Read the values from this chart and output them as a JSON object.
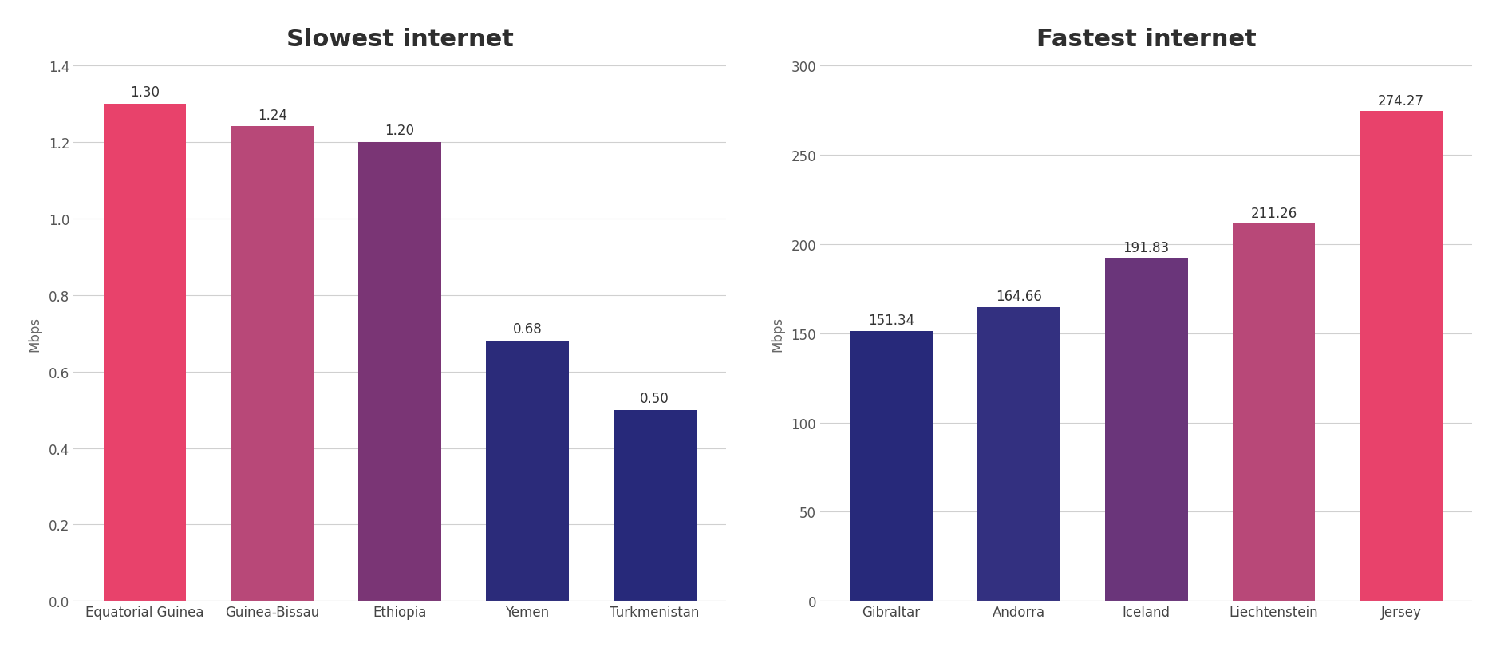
{
  "slow_categories": [
    "Equatorial Guinea",
    "Guinea-Bissau",
    "Ethiopia",
    "Yemen",
    "Turkmenistan"
  ],
  "slow_values": [
    1.3,
    1.24,
    1.2,
    0.68,
    0.5
  ],
  "slow_colors": [
    "#e8426b",
    "#b84878",
    "#7a3575",
    "#2b2b7a",
    "#27297a"
  ],
  "fast_categories": [
    "Gibraltar",
    "Andorra",
    "Iceland",
    "Liechtenstein",
    "Jersey"
  ],
  "fast_values": [
    151.34,
    164.66,
    191.83,
    211.26,
    274.27
  ],
  "fast_colors": [
    "#27297a",
    "#333080",
    "#6a357a",
    "#b84878",
    "#e8426b"
  ],
  "slow_title": "Slowest internet",
  "fast_title": "Fastest internet",
  "ylabel": "Mbps",
  "slow_ylim": [
    0,
    1.4
  ],
  "slow_yticks": [
    0,
    0.2,
    0.4,
    0.6,
    0.8,
    1.0,
    1.2,
    1.4
  ],
  "fast_ylim": [
    0,
    300
  ],
  "fast_yticks": [
    0,
    50,
    100,
    150,
    200,
    250,
    300
  ],
  "title_fontsize": 22,
  "label_fontsize": 12,
  "tick_fontsize": 12,
  "value_fontsize": 12,
  "background_color": "#ffffff",
  "grid_color": "#d0d0d0",
  "bar_width": 0.65
}
